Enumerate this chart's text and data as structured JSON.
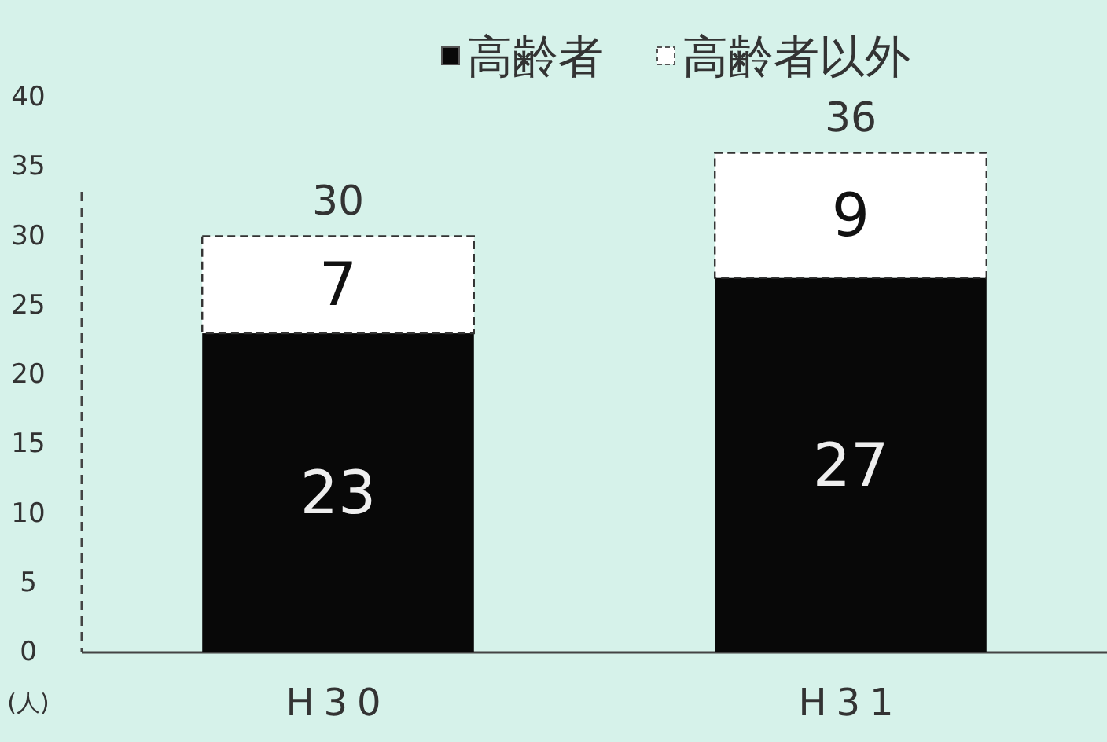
{
  "chart_data": {
    "type": "bar",
    "categories": [
      "H30",
      "H31"
    ],
    "stacked": true,
    "series": [
      {
        "name": "高齢者",
        "color": "#080808",
        "values": [
          23,
          27
        ]
      },
      {
        "name": "高齢者以外",
        "color": "#ffffff",
        "values": [
          7,
          9
        ]
      }
    ],
    "ylabel": "(人)",
    "ylim": [
      0,
      40
    ],
    "yticks": [
      0,
      5,
      10,
      15,
      20,
      25,
      30,
      35,
      40
    ],
    "data_labels": true,
    "totals": [
      "30",
      "36"
    ],
    "legend": "top"
  }
}
